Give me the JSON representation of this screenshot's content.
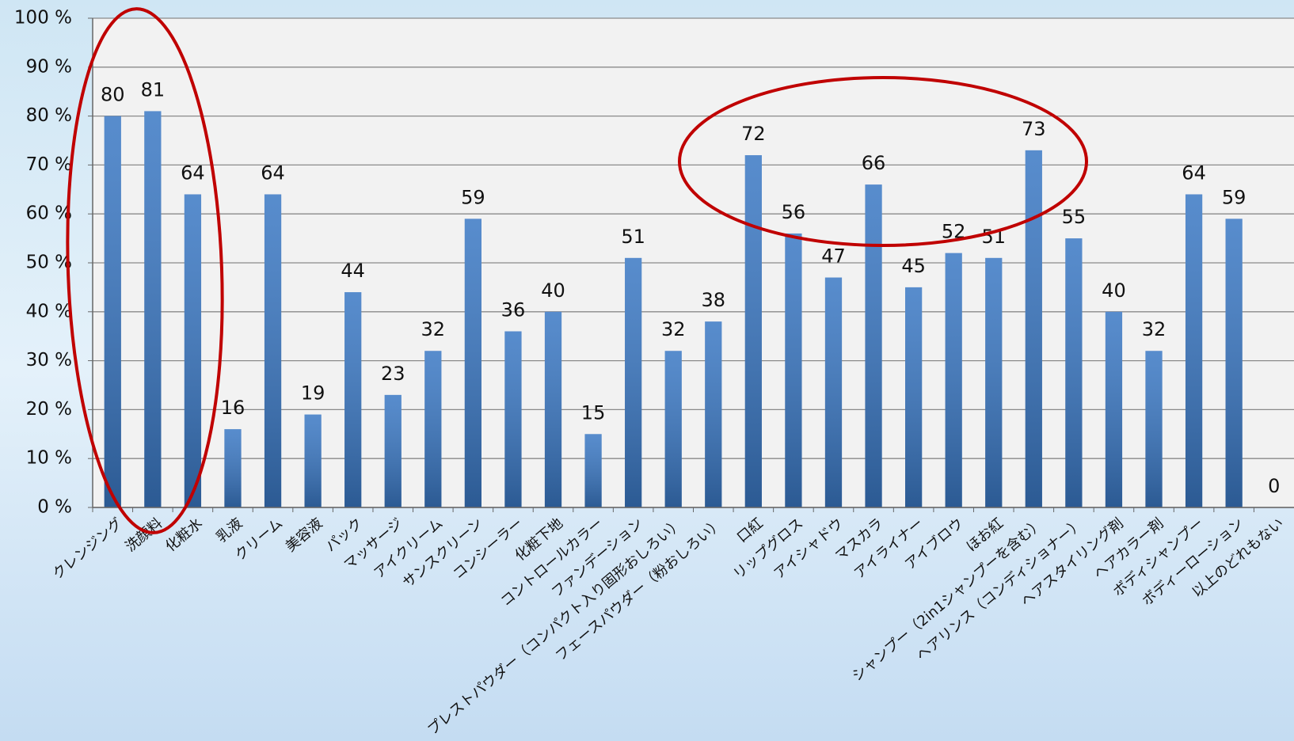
{
  "chart_data": {
    "type": "bar",
    "categories": [
      "クレンジング",
      "洗顔料",
      "化粧水",
      "乳液",
      "クリーム",
      "美容液",
      "パック",
      "マッサージ",
      "アイクリーム",
      "サンスクリーン",
      "コンシーラー",
      "化粧下地",
      "コントロールカラー",
      "ファンデーション",
      "プレストパウダー（コンパクト入り固形おしろい）",
      "フェースパウダー（粉おしろい）",
      "口紅",
      "リップグロス",
      "アイシャドウ",
      "マスカラ",
      "アイライナー",
      "アイブロウ",
      "ほお紅",
      "シャンプー（2in1シャンプーを含む）",
      "ヘアリンス（コンディショナー）",
      "ヘアスタイリング剤",
      "ヘアカラー剤",
      "ボディシャンプー",
      "ボディーローション",
      "以上のどれもない"
    ],
    "values": [
      80,
      81,
      64,
      16,
      64,
      19,
      44,
      23,
      32,
      59,
      36,
      40,
      15,
      51,
      32,
      38,
      72,
      56,
      47,
      66,
      45,
      52,
      51,
      73,
      55,
      40,
      32,
      64,
      59,
      0
    ],
    "color": "#3a78c4",
    "ylim": [
      0,
      100
    ],
    "yticks": [
      {
        "value": 0,
        "label": "0 %"
      },
      {
        "value": 10,
        "label": "10 %"
      },
      {
        "value": 20,
        "label": "20 %"
      },
      {
        "value": 30,
        "label": "30 %"
      },
      {
        "value": 40,
        "label": "40 %"
      },
      {
        "value": 50,
        "label": "50 %"
      },
      {
        "value": 60,
        "label": "60 %"
      },
      {
        "value": 70,
        "label": "70 %"
      },
      {
        "value": 80,
        "label": "80 %"
      },
      {
        "value": 90,
        "label": "90 %"
      },
      {
        "value": 100,
        "label": "100 %"
      }
    ],
    "grid": true
  }
}
